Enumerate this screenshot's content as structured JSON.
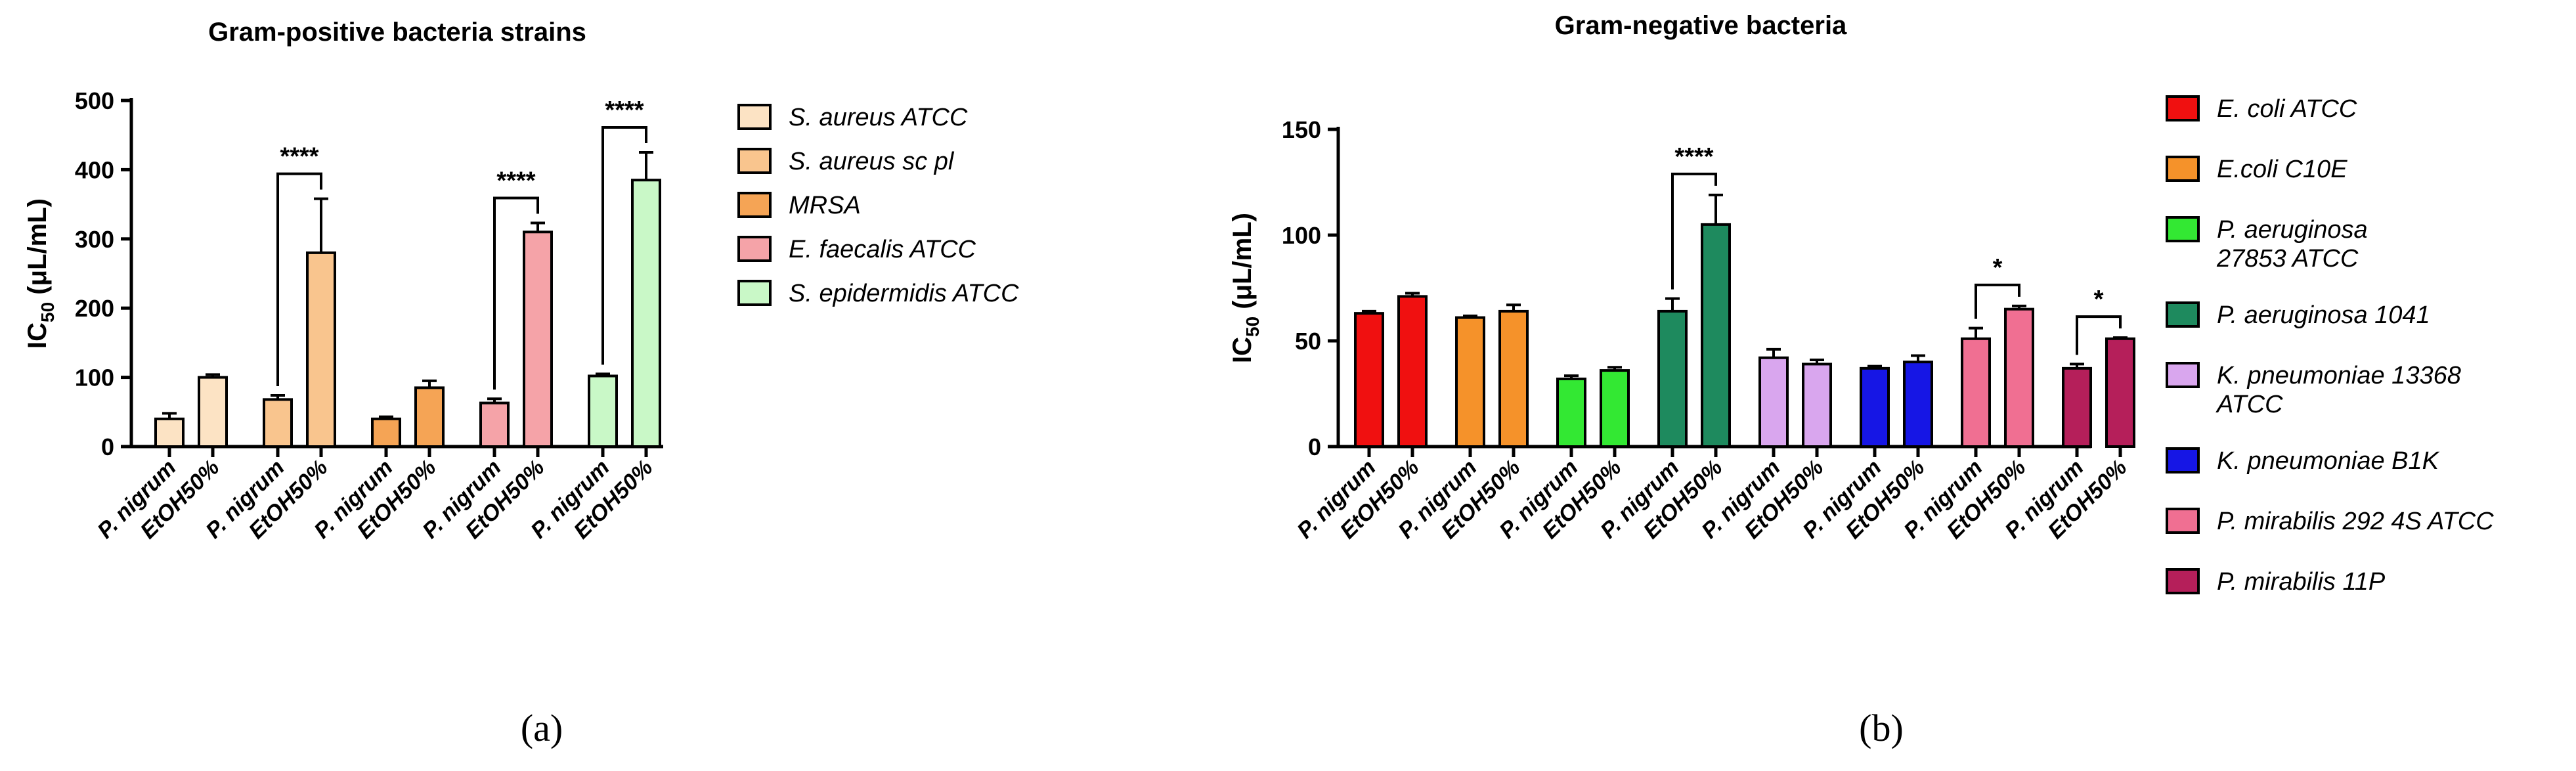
{
  "chart_data": [
    {
      "type": "bar",
      "panel_label": "(a)",
      "title": "Gram-positive bacteria strains",
      "ylabel": "IC50 (μL/mL)",
      "ylabel_main": "IC",
      "ylabel_sub": "50",
      "ylabel_rest": " (μL/mL)",
      "ylim": [
        0,
        500
      ],
      "yticks": [
        "0",
        "100",
        "200",
        "300",
        "400",
        "500"
      ],
      "bar_labels": [
        "P. nigrum",
        "EtOH50%"
      ],
      "groups": [
        {
          "strain": "S. aureus ATCC",
          "color": "#FCE3C4",
          "values": [
            40,
            100
          ],
          "errors": [
            8,
            4
          ]
        },
        {
          "strain": "S. aureus sc pl",
          "color": "#F9C58E",
          "values": [
            68,
            280
          ],
          "errors": [
            6,
            78
          ],
          "significance": "****"
        },
        {
          "strain": "MRSA",
          "color": "#F5A455",
          "values": [
            40,
            85
          ],
          "errors": [
            3,
            10
          ]
        },
        {
          "strain": "E. faecalis ATCC",
          "color": "#F5A3A8",
          "values": [
            63,
            310
          ],
          "errors": [
            6,
            13
          ],
          "significance": "****"
        },
        {
          "strain": "S. epidermidis ATCC",
          "color": "#C9F8C7",
          "values": [
            102,
            385
          ],
          "errors": [
            3,
            40
          ],
          "significance": "****"
        }
      ],
      "legend": [
        "S. aureus ATCC",
        "S. aureus sc pl",
        "MRSA",
        "E. faecalis ATCC",
        "S. epidermidis ATCC"
      ]
    },
    {
      "type": "bar",
      "panel_label": "(b)",
      "title": "Gram-negative bacteria",
      "ylabel": "IC50 (μL/mL)",
      "ylabel_main": "IC",
      "ylabel_sub": "50",
      "ylabel_rest": " (μL/mL)",
      "ylim": [
        0,
        150
      ],
      "yticks": [
        "0",
        "50",
        "100",
        "150"
      ],
      "bar_labels": [
        "P. nigrum",
        "EtOH50%"
      ],
      "groups": [
        {
          "strain": "E. coli ATCC",
          "color": "#F01010",
          "values": [
            63,
            71
          ],
          "errors": [
            1,
            1.5
          ]
        },
        {
          "strain": "E.coli C10E",
          "color": "#F5922A",
          "values": [
            61,
            64
          ],
          "errors": [
            0.8,
            3
          ]
        },
        {
          "strain": "P. aeruginosa 27853 ATCC",
          "color": "#33E833",
          "values": [
            32,
            36
          ],
          "errors": [
            1.5,
            1.5
          ]
        },
        {
          "strain": "P. aeruginosa 1041",
          "color": "#1E8A5E",
          "values": [
            64,
            105
          ],
          "errors": [
            6,
            14
          ],
          "significance": "****"
        },
        {
          "strain": "K. pneumoniae 13368 ATCC",
          "color": "#D9A6EE",
          "values": [
            42,
            39
          ],
          "errors": [
            4,
            2
          ]
        },
        {
          "strain": "K. pneumoniae B1K",
          "color": "#1616E5",
          "values": [
            37,
            40
          ],
          "errors": [
            1,
            3
          ]
        },
        {
          "strain": "P. mirabilis 292 4S ATCC",
          "color": "#F06F92",
          "values": [
            51,
            65
          ],
          "errors": [
            5,
            1.5
          ],
          "significance": "*"
        },
        {
          "strain": "P. mirabilis  11P",
          "color": "#B51F5A",
          "values": [
            37,
            51
          ],
          "errors": [
            2,
            0.5
          ],
          "significance": "*"
        }
      ],
      "legend": [
        "E. coli ATCC",
        "E.coli C10E",
        "P. aeruginosa\n27853 ATCC",
        "P. aeruginosa 1041",
        "K. pneumoniae 13368\nATCC",
        "K. pneumoniae B1K",
        "P. mirabilis 292 4S ATCC",
        "P. mirabilis  11P"
      ]
    }
  ]
}
